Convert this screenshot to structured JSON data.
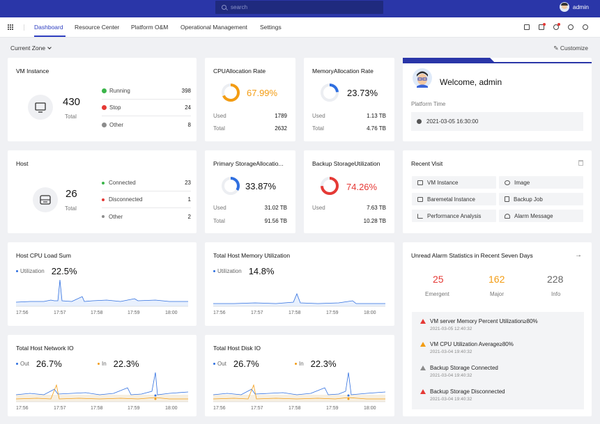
{
  "header": {
    "search_placeholder": "search",
    "username": "admin"
  },
  "nav": {
    "tabs": [
      {
        "label": "Dashboard"
      },
      {
        "label": "Resource Center"
      },
      {
        "label": "Platform O&M"
      },
      {
        "label": "Operational Management"
      },
      {
        "label": "Settings"
      }
    ],
    "icons": [
      "monitor-icon",
      "alert-icon",
      "bell-icon",
      "settings-icon",
      "help-icon"
    ]
  },
  "toolbar": {
    "zone": "Current Zone",
    "customize": "Customize"
  },
  "vm": {
    "title": "VM Instance",
    "total": "430",
    "total_label": "Total",
    "stats": [
      {
        "label": "Running",
        "value": "398",
        "color": "#3bb54a"
      },
      {
        "label": "Stop",
        "value": "24",
        "color": "#e53935"
      },
      {
        "label": "Other",
        "value": "8",
        "color": "#8c8c8c"
      }
    ]
  },
  "cpu_alloc": {
    "title": "CPUAllocation Rate",
    "percent": "67.99%",
    "value": 0.6799,
    "color": "#f39c12",
    "used_label": "Used",
    "used": "1789",
    "total_label": "Total",
    "total": "2632"
  },
  "mem_alloc": {
    "title": "MemoryAllocation Rate",
    "percent": "23.73%",
    "value": 0.2373,
    "color": "#2f6fe0",
    "used_label": "Used",
    "used": "1.13 TB",
    "total_label": "Total",
    "total": "4.76 TB"
  },
  "welcome": {
    "greeting": "Welcome, admin",
    "time_label": "Platform Time",
    "time": "2021-03-05 16:30:00"
  },
  "host": {
    "title": "Host",
    "total": "26",
    "total_label": "Total",
    "stats": [
      {
        "label": "Connected",
        "value": "23",
        "color": "#3bb54a"
      },
      {
        "label": "Disconnected",
        "value": "1",
        "color": "#e53935"
      },
      {
        "label": "Other",
        "value": "2",
        "color": "#8c8c8c"
      }
    ]
  },
  "primary_storage": {
    "title": "Primary StorageAllocatio...",
    "percent": "33.87%",
    "value": 0.3387,
    "color": "#2f6fe0",
    "used_label": "Used",
    "used": "31.02 TB",
    "total_label": "Total",
    "total": "91.56 TB"
  },
  "backup_storage": {
    "title": "Backup StorageUtilization",
    "percent": "74.26%",
    "value": 0.7426,
    "color": "#e53935",
    "used_label": "Used",
    "used": "7.63 TB",
    "total": "10.28 TB"
  },
  "recent_visit": {
    "title": "Recent Visit",
    "items": [
      {
        "label": "VM Instance",
        "icon": "monitor-icon"
      },
      {
        "label": "Image",
        "icon": "image-icon"
      },
      {
        "label": "Baremetal Instance",
        "icon": "server-icon"
      },
      {
        "label": "Backup Job",
        "icon": "backup-icon"
      },
      {
        "label": "Performance Analysis",
        "icon": "chart-icon"
      },
      {
        "label": "Alarm Message",
        "icon": "bell-icon"
      }
    ]
  },
  "host_cpu": {
    "title": "Host CPU Load Sum",
    "legend": "Utilization",
    "value": "22.5%"
  },
  "host_mem": {
    "title": "Total Host Memory Utilization",
    "legend": "Utilization",
    "value": "14.8%"
  },
  "host_net": {
    "title": "Total Host Network IO",
    "out_label": "Out",
    "out_value": "26.7%",
    "in_label": "In",
    "in_value": "22.3%"
  },
  "host_disk": {
    "title": "Total Host Disk IO",
    "out_label": "Out",
    "out_value": "26.7%",
    "in_label": "In",
    "in_value": "22.3%"
  },
  "xticks": [
    "17:56",
    "17:57",
    "17:58",
    "17:59",
    "18:00"
  ],
  "alarm_stats": {
    "title": "Unread Alarm Statistics in Recent Seven Days",
    "counts": [
      {
        "value": "25",
        "label": "Emergent",
        "color": "#e53935"
      },
      {
        "value": "162",
        "label": "Major",
        "color": "#f39c12"
      },
      {
        "value": "228",
        "label": "Info",
        "color": "#666666"
      }
    ],
    "alarms": [
      {
        "text": "VM server Memory Percent Utilization≥80%",
        "time": "2021-03-05 12:40:32",
        "color": "#e53935"
      },
      {
        "text": "VM CPU Utilization Average≥80%",
        "time": "2021-03-04 19:40:32",
        "color": "#f39c12"
      },
      {
        "text": "Backup Storage Connected",
        "time": "2021-03-04 19:40:32",
        "color": "#8c8c8c"
      },
      {
        "text": "Backup Storage Disconnected",
        "time": "2021-03-04 19:40:32",
        "color": "#e53935"
      }
    ]
  }
}
